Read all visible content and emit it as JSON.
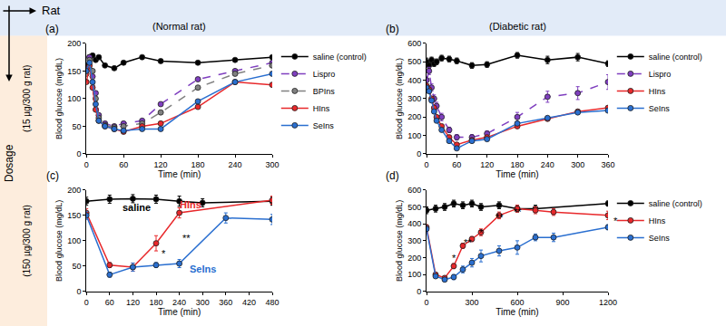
{
  "header": {
    "column_axis": "Rat",
    "row_axis": "Dosage",
    "columns": [
      "(Normal rat)",
      "(Diabetic rat)"
    ],
    "rows": [
      "(15 µg/300 g rat)",
      "(150 µg/300 g rat)"
    ]
  },
  "chart_data": [
    {
      "type": "line",
      "title": "(a)",
      "x_label": "Time (min)",
      "y_label": "Blood glucose (mg/dL)",
      "xlim": [
        0,
        300
      ],
      "xticks": [
        0,
        60,
        120,
        180,
        240,
        300
      ],
      "ylim": [
        0,
        200
      ],
      "yticks": [
        0,
        50,
        100,
        150,
        200
      ],
      "grid": false,
      "legend": "right",
      "series": [
        {
          "name": "saline (control)",
          "color": "#000000",
          "marker": "circle",
          "line_style": "solid",
          "x": [
            0,
            5,
            10,
            15,
            20,
            30,
            45,
            60,
            90,
            120,
            180,
            240,
            300
          ],
          "values": [
            160,
            175,
            178,
            170,
            175,
            160,
            155,
            165,
            175,
            168,
            165,
            170,
            175
          ]
        },
        {
          "name": "Lispro",
          "color": "#7f3fbf",
          "marker": "circle",
          "line_style": "dashed",
          "x": [
            0,
            5,
            10,
            15,
            20,
            30,
            45,
            60,
            90,
            120,
            180,
            240,
            300
          ],
          "values": [
            150,
            175,
            140,
            110,
            70,
            55,
            50,
            55,
            60,
            90,
            135,
            150,
            165
          ]
        },
        {
          "name": "BPIns",
          "color": "#808080",
          "marker": "circle",
          "line_style": "dashed",
          "x": [
            0,
            5,
            10,
            15,
            20,
            30,
            45,
            60,
            90,
            120,
            180,
            240,
            300
          ],
          "values": [
            145,
            170,
            150,
            100,
            65,
            52,
            48,
            50,
            55,
            75,
            120,
            145,
            160
          ]
        },
        {
          "name": "HIns",
          "color": "#e8282b",
          "marker": "circle",
          "line_style": "solid",
          "x": [
            0,
            5,
            10,
            15,
            20,
            30,
            45,
            60,
            90,
            120,
            180,
            240,
            300
          ],
          "values": [
            130,
            160,
            120,
            80,
            60,
            50,
            45,
            40,
            50,
            55,
            85,
            130,
            125
          ]
        },
        {
          "name": "SeIns",
          "color": "#2a6fd0",
          "marker": "circle",
          "line_style": "solid",
          "x": [
            0,
            5,
            10,
            15,
            20,
            30,
            45,
            60,
            90,
            120,
            180,
            240,
            300
          ],
          "values": [
            150,
            165,
            130,
            90,
            60,
            50,
            45,
            42,
            45,
            45,
            95,
            130,
            145
          ]
        }
      ]
    },
    {
      "type": "line",
      "title": "(b)",
      "x_label": "Time (min)",
      "y_label": "Blood glucose (mg/dL)",
      "xlim": [
        0,
        360
      ],
      "xticks": [
        0,
        60,
        120,
        180,
        240,
        300,
        360
      ],
      "ylim": [
        0,
        600
      ],
      "yticks": [
        0,
        100,
        200,
        300,
        400,
        500,
        600
      ],
      "grid": false,
      "legend": "right",
      "series": [
        {
          "name": "saline (control)",
          "color": "#000000",
          "marker": "circle",
          "line_style": "solid",
          "x": [
            0,
            5,
            10,
            15,
            20,
            30,
            45,
            60,
            90,
            120,
            180,
            240,
            300,
            360
          ],
          "values": [
            500,
            480,
            510,
            490,
            500,
            520,
            515,
            505,
            480,
            485,
            535,
            510,
            525,
            490
          ],
          "error": [
            20,
            15,
            15,
            15,
            15,
            15,
            15,
            15,
            15,
            15,
            15,
            20,
            20,
            15
          ]
        },
        {
          "name": "Lispro",
          "color": "#7f3fbf",
          "marker": "circle",
          "line_style": "dashed",
          "x": [
            0,
            5,
            10,
            15,
            20,
            30,
            45,
            60,
            90,
            120,
            180,
            240,
            300,
            360
          ],
          "values": [
            400,
            450,
            360,
            300,
            260,
            200,
            130,
            90,
            90,
            110,
            200,
            310,
            330,
            390
          ],
          "error": [
            20,
            20,
            20,
            20,
            20,
            20,
            15,
            15,
            15,
            15,
            25,
            30,
            35,
            40
          ]
        },
        {
          "name": "HIns",
          "color": "#e8282b",
          "marker": "circle",
          "line_style": "solid",
          "x": [
            0,
            5,
            10,
            15,
            20,
            30,
            45,
            60,
            90,
            120,
            180,
            240,
            300,
            360
          ],
          "values": [
            370,
            350,
            300,
            250,
            200,
            150,
            90,
            50,
            75,
            90,
            150,
            190,
            230,
            250
          ]
        },
        {
          "name": "SeIns",
          "color": "#2a6fd0",
          "marker": "circle",
          "line_style": "solid",
          "x": [
            0,
            5,
            10,
            15,
            20,
            30,
            45,
            60,
            90,
            120,
            180,
            240,
            300,
            360
          ],
          "values": [
            360,
            340,
            290,
            230,
            180,
            130,
            70,
            30,
            70,
            80,
            165,
            195,
            225,
            235
          ]
        }
      ]
    },
    {
      "type": "line",
      "title": "(c)",
      "x_label": "Time (min)",
      "y_label": "Blood glucose (mg/dL)",
      "xlim": [
        0,
        480
      ],
      "xticks": [
        0,
        60,
        120,
        180,
        240,
        300,
        360,
        420,
        480
      ],
      "ylim": [
        0,
        200
      ],
      "yticks": [
        0,
        50,
        100,
        150,
        200
      ],
      "grid": false,
      "series": [
        {
          "name": "saline",
          "color": "#000000",
          "marker": "circle",
          "line_style": "solid",
          "x": [
            0,
            60,
            120,
            180,
            240,
            300,
            480
          ],
          "values": [
            178,
            182,
            183,
            182,
            178,
            175,
            178
          ],
          "error": [
            8,
            8,
            8,
            8,
            10,
            8,
            8
          ]
        },
        {
          "name": "HIns",
          "color": "#e8282b",
          "marker": "circle",
          "line_style": "solid",
          "x": [
            0,
            60,
            120,
            180,
            240,
            480
          ],
          "values": [
            155,
            52,
            48,
            95,
            155,
            180
          ],
          "error": [
            8,
            5,
            8,
            15,
            10,
            8
          ]
        },
        {
          "name": "SeIns",
          "color": "#2a6fd0",
          "marker": "circle",
          "line_style": "solid",
          "x": [
            0,
            60,
            120,
            180,
            240,
            360,
            480
          ],
          "values": [
            150,
            33,
            48,
            52,
            55,
            145,
            142
          ],
          "error": [
            8,
            5,
            8,
            5,
            8,
            10,
            10
          ]
        }
      ],
      "annotations": [
        {
          "text": "saline",
          "x": 130,
          "y": 165,
          "color": "#000000"
        },
        {
          "text": "HIns",
          "x": 270,
          "y": 172,
          "color": "#e8282b"
        },
        {
          "text": "SeIns",
          "x": 300,
          "y": 45,
          "color": "#2a6fd0"
        },
        {
          "text": "*",
          "x": 200,
          "y": 75,
          "color": "#000000"
        },
        {
          "text": "**",
          "x": 258,
          "y": 105,
          "color": "#000000"
        }
      ]
    },
    {
      "type": "line",
      "title": "(d)",
      "x_label": "Time (min)",
      "y_label": "Blood glucose (mg/dL)",
      "xlim": [
        0,
        1200
      ],
      "xticks": [
        0,
        300,
        600,
        900,
        1200
      ],
      "ylim": [
        0,
        600
      ],
      "yticks": [
        0,
        100,
        200,
        300,
        400,
        500,
        600
      ],
      "grid": false,
      "legend": "right",
      "series": [
        {
          "name": "saline (control)",
          "color": "#000000",
          "marker": "circle",
          "line_style": "solid",
          "x": [
            0,
            60,
            120,
            180,
            240,
            300,
            360,
            480,
            600,
            720,
            1200
          ],
          "values": [
            480,
            490,
            500,
            520,
            510,
            520,
            500,
            510,
            490,
            490,
            520
          ],
          "error": [
            20,
            20,
            20,
            20,
            20,
            20,
            20,
            20,
            20,
            20,
            15
          ]
        },
        {
          "name": "HIns",
          "color": "#e8282b",
          "marker": "circle",
          "line_style": "solid",
          "x": [
            0,
            60,
            120,
            180,
            240,
            300,
            360,
            480,
            600,
            720,
            840,
            1200
          ],
          "values": [
            380,
            100,
            80,
            150,
            270,
            310,
            350,
            450,
            490,
            480,
            470,
            450
          ],
          "error": [
            15,
            10,
            10,
            15,
            15,
            15,
            20,
            20,
            20,
            20,
            20,
            25
          ]
        },
        {
          "name": "SeIns",
          "color": "#2a6fd0",
          "marker": "circle",
          "line_style": "solid",
          "x": [
            0,
            60,
            120,
            180,
            240,
            300,
            360,
            480,
            600,
            720,
            840,
            1200
          ],
          "values": [
            370,
            90,
            70,
            85,
            130,
            170,
            210,
            240,
            260,
            320,
            320,
            380
          ],
          "error": [
            15,
            10,
            10,
            15,
            20,
            25,
            35,
            30,
            40,
            20,
            25,
            15
          ]
        }
      ],
      "annotations": [
        {
          "text": "*",
          "x": 180,
          "y": 200,
          "color": "#000000"
        },
        {
          "text": "**",
          "x": 270,
          "y": 290,
          "color": "#000000"
        },
        {
          "text": "*",
          "x": 360,
          "y": 350,
          "color": "#000000"
        },
        {
          "text": "**",
          "x": 480,
          "y": 440,
          "color": "#000000"
        },
        {
          "text": "**",
          "x": 600,
          "y": 470,
          "color": "#000000"
        },
        {
          "text": "*",
          "x": 1200,
          "y": 415,
          "color": "#000000"
        }
      ]
    }
  ]
}
